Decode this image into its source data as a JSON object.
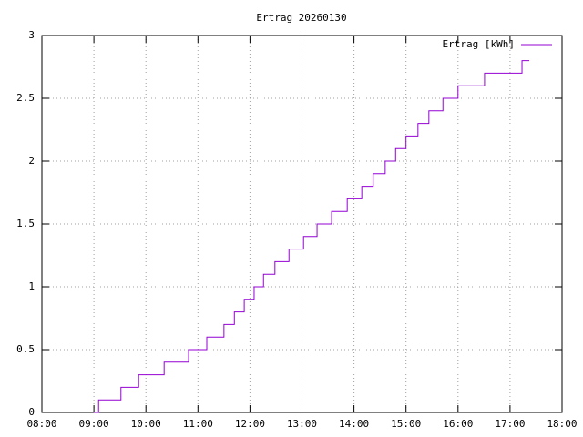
{
  "chart_data": {
    "type": "line",
    "title": "Ertrag 20260130",
    "x": [
      9.0,
      9.09,
      9.52,
      9.86,
      10.35,
      10.82,
      11.17,
      11.5,
      11.7,
      11.89,
      12.08,
      12.26,
      12.48,
      12.75,
      13.03,
      13.29,
      13.57,
      13.87,
      14.15,
      14.37,
      14.6,
      14.8,
      15.0,
      15.23,
      15.44,
      15.71,
      16.0,
      16.51,
      17.23,
      17.37
    ],
    "series": [
      {
        "name": "Ertrag [kWh]",
        "color": "#9400d3",
        "values": [
          0,
          0.1,
          0.2,
          0.3,
          0.4,
          0.5,
          0.6,
          0.7,
          0.8,
          0.9,
          1.0,
          1.1,
          1.2,
          1.3,
          1.4,
          1.5,
          1.6,
          1.7,
          1.8,
          1.9,
          2.0,
          2.1,
          2.2,
          2.3,
          2.4,
          2.5,
          2.6,
          2.7,
          2.8,
          2.8
        ]
      }
    ],
    "steps": true,
    "xlim": [
      8,
      18
    ],
    "xticks": [
      {
        "value": 8,
        "label": "08:00"
      },
      {
        "value": 9,
        "label": "09:00"
      },
      {
        "value": 10,
        "label": "10:00"
      },
      {
        "value": 11,
        "label": "11:00"
      },
      {
        "value": 12,
        "label": "12:00"
      },
      {
        "value": 13,
        "label": "13:00"
      },
      {
        "value": 14,
        "label": "14:00"
      },
      {
        "value": 15,
        "label": "15:00"
      },
      {
        "value": 16,
        "label": "16:00"
      },
      {
        "value": 17,
        "label": "17:00"
      },
      {
        "value": 18,
        "label": "18:00"
      }
    ],
    "ylim": [
      0,
      3
    ],
    "yticks": [
      0,
      0.5,
      1,
      1.5,
      2,
      2.5,
      3
    ],
    "grid": true,
    "legend": "top-right"
  }
}
